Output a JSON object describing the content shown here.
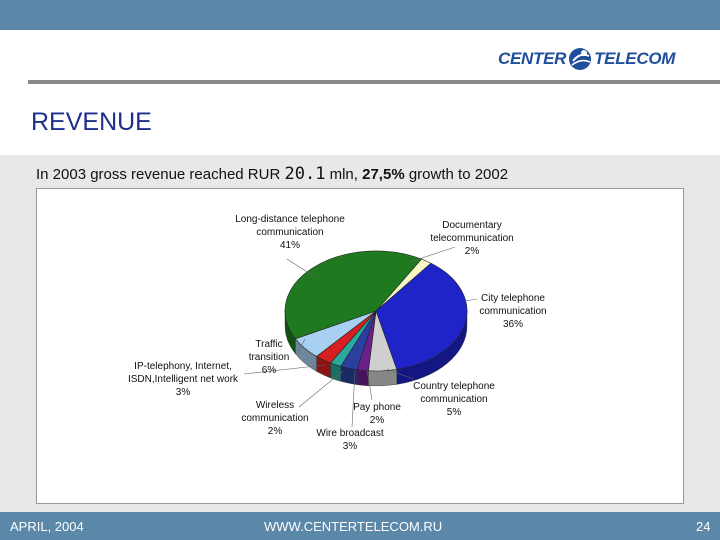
{
  "header": {
    "logo_left": "CENTER",
    "logo_right": "TELECOM"
  },
  "title": "REVENUE",
  "subtitle": {
    "prefix": "In 2003 gross revenue reached RUR ",
    "amount": "20.1",
    "mid": " mln, ",
    "growth": "27,5%",
    "suffix": " growth to 2002"
  },
  "chart_data": {
    "type": "pie",
    "title": "",
    "slices": [
      {
        "label_lines": [
          "Documentary",
          "telecommunication",
          "2%"
        ],
        "value": 2,
        "color": "#f7f7c6"
      },
      {
        "label_lines": [
          "City telephone",
          "communication",
          "36%"
        ],
        "value": 36,
        "color": "#1f24c9"
      },
      {
        "label_lines": [
          "Country telephone",
          "communication",
          "5%"
        ],
        "value": 5,
        "color": "#cfcfcf"
      },
      {
        "label_lines": [
          "Pay phone",
          "2%"
        ],
        "value": 2,
        "color": "#6a1f8a"
      },
      {
        "label_lines": [
          "Wire broadcast",
          "3%"
        ],
        "value": 3,
        "color": "#2a3f9e"
      },
      {
        "label_lines": [
          "Wireless",
          "communication",
          "2%"
        ],
        "value": 2,
        "color": "#2aa89e"
      },
      {
        "label_lines": [
          "IP-telephony, Internet,",
          "ISDN,Intelligent  net work",
          "3%"
        ],
        "value": 3,
        "color": "#d81f1f"
      },
      {
        "label_lines": [
          "Traffic",
          "transition",
          "6%"
        ],
        "value": 6,
        "color": "#a8d0f0"
      },
      {
        "label_lines": [
          "Long-distance telephone",
          "communication",
          "41%"
        ],
        "value": 41,
        "color": "#1f7a1f"
      }
    ]
  },
  "footer": {
    "date": "APRIL, 2004",
    "url": "WWW.CENTERTELECOM.RU",
    "page": "24"
  }
}
